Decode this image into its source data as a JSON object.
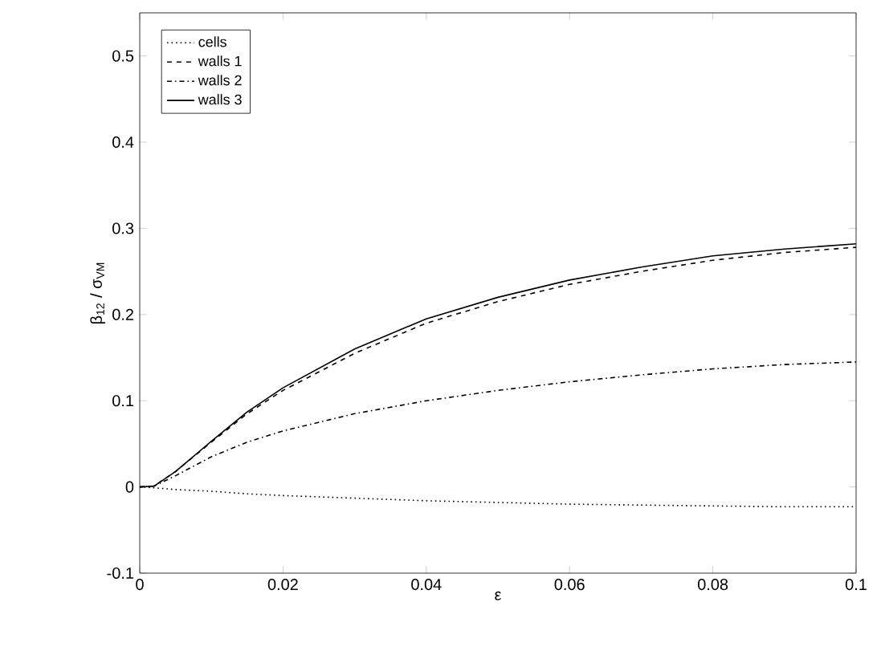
{
  "chart_data": {
    "type": "line",
    "xlabel": "ε",
    "ylabel": "β$_{12}$ / σ$_{VM}$",
    "x": [
      0,
      0.002,
      0.005,
      0.01,
      0.015,
      0.02,
      0.03,
      0.04,
      0.05,
      0.06,
      0.07,
      0.08,
      0.09,
      0.1
    ],
    "series": [
      {
        "name": "cells",
        "color": "#000000",
        "line_style": "dotted",
        "values": [
          0,
          -0.001,
          -0.003,
          -0.005,
          -0.008,
          -0.01,
          -0.013,
          -0.016,
          -0.018,
          -0.02,
          -0.021,
          -0.022,
          -0.023,
          -0.023
        ]
      },
      {
        "name": "walls 1",
        "color": "#000000",
        "line_style": "dashed",
        "values": [
          0,
          0.001,
          0.018,
          0.052,
          0.085,
          0.112,
          0.155,
          0.19,
          0.215,
          0.235,
          0.25,
          0.263,
          0.272,
          0.278
        ]
      },
      {
        "name": "walls 2",
        "color": "#000000",
        "line_style": "dashdot",
        "values": [
          0,
          0.001,
          0.013,
          0.035,
          0.052,
          0.065,
          0.085,
          0.1,
          0.112,
          0.122,
          0.13,
          0.137,
          0.142,
          0.145
        ]
      },
      {
        "name": "walls 3",
        "color": "#000000",
        "line_style": "solid",
        "values": [
          0,
          0.001,
          0.018,
          0.053,
          0.087,
          0.115,
          0.16,
          0.195,
          0.22,
          0.24,
          0.255,
          0.268,
          0.276,
          0.282
        ]
      }
    ],
    "xlim": [
      0,
      0.1
    ],
    "ylim": [
      -0.1,
      0.55
    ],
    "xticks": [
      0,
      0.02,
      0.04,
      0.06,
      0.08,
      0.1
    ],
    "yticks": [
      -0.1,
      0,
      0.1,
      0.2,
      0.3,
      0.4,
      0.5
    ],
    "legend": "top left",
    "grid": false,
    "marker": "none"
  }
}
